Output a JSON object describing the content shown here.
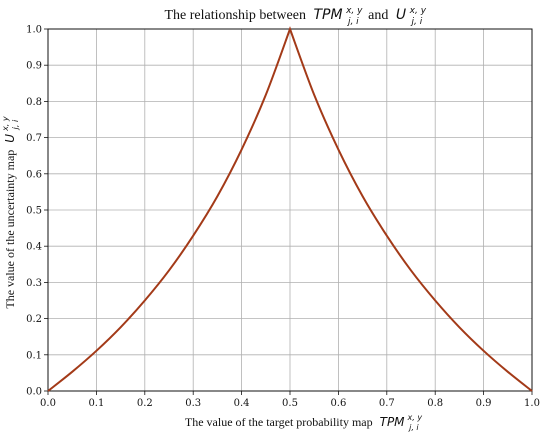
{
  "chart_data": {
    "type": "line",
    "title": {
      "prefix": "The relationship between",
      "var1": "TPM",
      "var1_sup": "x, y",
      "var1_sub": "j, i",
      "conj": "and",
      "var2": "U",
      "var2_sup": "x, y",
      "var2_sub": "j, i"
    },
    "xlabel": {
      "prefix": "The value of the target probability map",
      "var": "TPM",
      "sup": "x, y",
      "sub": "j, i"
    },
    "ylabel": {
      "prefix": "The value of the uncertainty map",
      "var": "U",
      "sup": "x, y",
      "sub": "j, i"
    },
    "xlim": [
      0.0,
      1.0
    ],
    "ylim": [
      0.0,
      1.0
    ],
    "xticks": [
      "0.0",
      "0.1",
      "0.2",
      "0.3",
      "0.4",
      "0.5",
      "0.6",
      "0.7",
      "0.8",
      "0.9",
      "1.0"
    ],
    "yticks": [
      "0.0",
      "0.1",
      "0.2",
      "0.3",
      "0.4",
      "0.5",
      "0.6",
      "0.7",
      "0.8",
      "0.9",
      "1.0"
    ],
    "grid": true,
    "series": [
      {
        "color": "#a33a18",
        "x": [
          0.0,
          0.05,
          0.1,
          0.15,
          0.2,
          0.25,
          0.3,
          0.35,
          0.4,
          0.45,
          0.5,
          0.55,
          0.6,
          0.65,
          0.7,
          0.75,
          0.8,
          0.85,
          0.9,
          0.95,
          1.0
        ],
        "y": [
          0.0,
          0.053,
          0.111,
          0.176,
          0.25,
          0.333,
          0.429,
          0.538,
          0.667,
          0.818,
          1.0,
          0.818,
          0.667,
          0.538,
          0.429,
          0.333,
          0.25,
          0.176,
          0.111,
          0.053,
          0.0
        ]
      }
    ]
  }
}
